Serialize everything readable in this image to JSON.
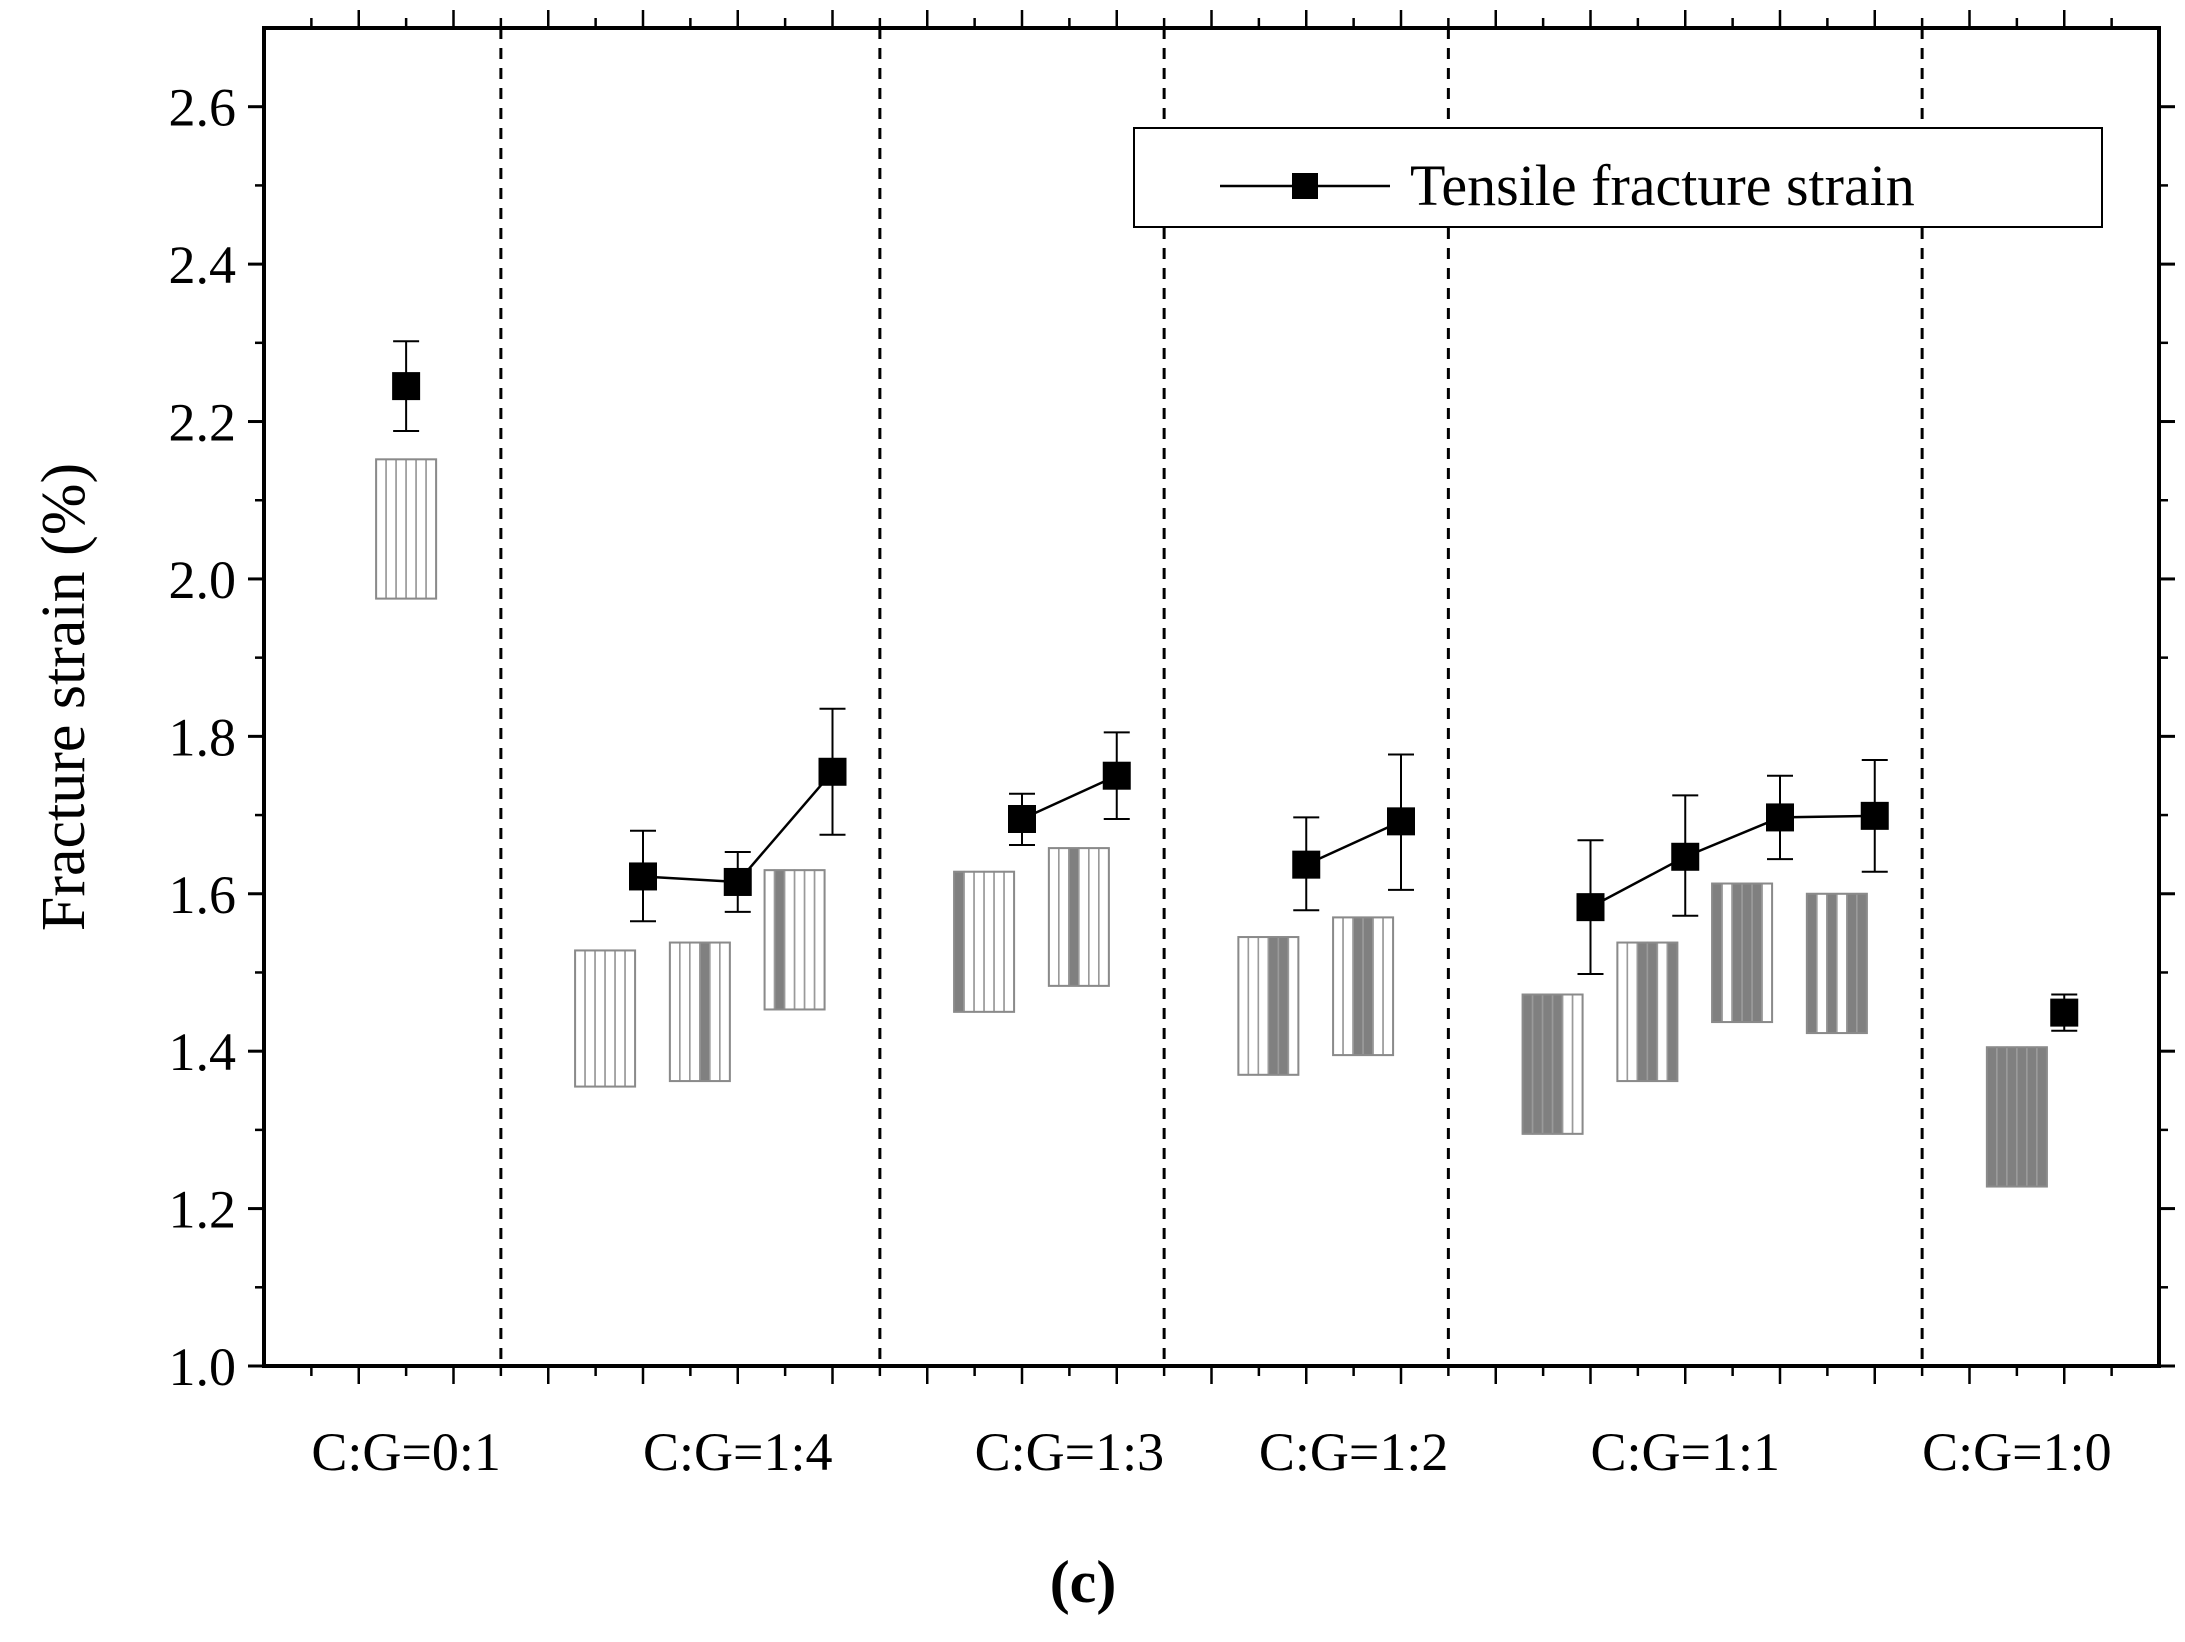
{
  "chart_data": {
    "type": "line",
    "title": "",
    "ylabel": "Fracture strain (%)",
    "xlabel": "",
    "caption": "(c)",
    "ylim": [
      1.0,
      2.7
    ],
    "y_ticks": [
      "1.0",
      "1.2",
      "1.4",
      "1.6",
      "1.8",
      "2.0",
      "2.2",
      "2.4",
      "2.6"
    ],
    "x_range": [
      0,
      20
    ],
    "groups": [
      {
        "label": "C:G=0:1",
        "x_center": 1.5
      },
      {
        "label": "C:G=1:4",
        "x_center": 5
      },
      {
        "label": "C:G=1:3",
        "x_center": 8.5
      },
      {
        "label": "C:G=1:2",
        "x_center": 11.5
      },
      {
        "label": "C:G=1:1",
        "x_center": 15
      },
      {
        "label": "C:G=1:0",
        "x_center": 18.5
      }
    ],
    "separators_x": [
      2.5,
      6.5,
      9.5,
      12.5,
      17.5
    ],
    "legend": {
      "label": "Tensile fracture strain",
      "position": "top-right"
    },
    "series": [
      {
        "name": "Tensile fracture strain",
        "segments": [
          [
            {
              "x": 1.5,
              "y": 2.245,
              "err_low": 0.057,
              "err_high": 0.057
            }
          ],
          [
            {
              "x": 4,
              "y": 1.622,
              "err_low": 0.057,
              "err_high": 0.058
            },
            {
              "x": 5,
              "y": 1.615,
              "err_low": 0.038,
              "err_high": 0.038
            },
            {
              "x": 6,
              "y": 1.755,
              "err_low": 0.08,
              "err_high": 0.08
            }
          ],
          [
            {
              "x": 8,
              "y": 1.695,
              "err_low": 0.033,
              "err_high": 0.032
            },
            {
              "x": 9,
              "y": 1.75,
              "err_low": 0.055,
              "err_high": 0.055
            }
          ],
          [
            {
              "x": 11,
              "y": 1.637,
              "err_low": 0.058,
              "err_high": 0.06
            },
            {
              "x": 12,
              "y": 1.692,
              "err_low": 0.087,
              "err_high": 0.085
            }
          ],
          [
            {
              "x": 14,
              "y": 1.583,
              "err_low": 0.085,
              "err_high": 0.085
            },
            {
              "x": 15,
              "y": 1.647,
              "err_low": 0.075,
              "err_high": 0.078
            },
            {
              "x": 16,
              "y": 1.697,
              "err_low": 0.053,
              "err_high": 0.053
            },
            {
              "x": 17,
              "y": 1.699,
              "err_low": 0.071,
              "err_high": 0.071
            }
          ],
          [
            {
              "x": 19,
              "y": 1.449,
              "err_low": 0.023,
              "err_high": 0.023
            }
          ]
        ]
      }
    ],
    "layup_icons": [
      {
        "x": 1.5,
        "y_top": 2.152,
        "y_bottom": 1.975,
        "stripes": "gggggg"
      },
      {
        "x": 3.6,
        "y_top": 1.528,
        "y_bottom": 1.355,
        "stripes": "gggggg"
      },
      {
        "x": 4.6,
        "y_top": 1.538,
        "y_bottom": 1.362,
        "stripes": "gggcgg"
      },
      {
        "x": 5.6,
        "y_top": 1.63,
        "y_bottom": 1.453,
        "stripes": "gcgggg"
      },
      {
        "x": 7.6,
        "y_top": 1.628,
        "y_bottom": 1.45,
        "stripes": "cggggg"
      },
      {
        "x": 8.6,
        "y_top": 1.658,
        "y_bottom": 1.483,
        "stripes": "ggcggg"
      },
      {
        "x": 10.6,
        "y_top": 1.545,
        "y_bottom": 1.37,
        "stripes": "gggccg"
      },
      {
        "x": 11.6,
        "y_top": 1.57,
        "y_bottom": 1.395,
        "stripes": "ggccgg"
      },
      {
        "x": 13.6,
        "y_top": 1.472,
        "y_bottom": 1.295,
        "stripes": "ccccgg"
      },
      {
        "x": 14.6,
        "y_top": 1.538,
        "y_bottom": 1.362,
        "stripes": "ggccgc"
      },
      {
        "x": 15.6,
        "y_top": 1.613,
        "y_bottom": 1.437,
        "stripes": "cgcccg"
      },
      {
        "x": 16.6,
        "y_top": 1.6,
        "y_bottom": 1.423,
        "stripes": "cgcgcc"
      },
      {
        "x": 18.5,
        "y_top": 1.405,
        "y_bottom": 1.228,
        "stripes": "cccccc"
      }
    ],
    "colors": {
      "line": "#000000",
      "marker": "#000000",
      "glass_fill": "#ffffff",
      "glass_line": "#9a9a9a",
      "carbon_fill": "#808080"
    }
  }
}
